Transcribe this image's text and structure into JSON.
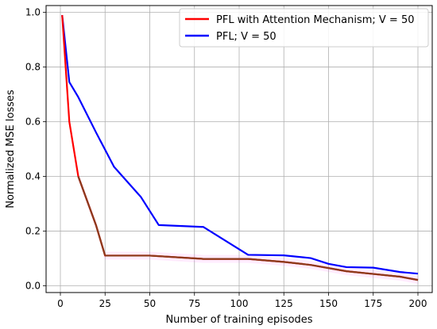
{
  "chart_data": {
    "type": "line",
    "title": "",
    "xlabel": "Number of training episodes",
    "ylabel": "Normalized MSE losses",
    "xlim": [
      -8,
      208
    ],
    "ylim": [
      -0.025,
      1.025
    ],
    "xticks": [
      0,
      25,
      50,
      75,
      100,
      125,
      150,
      175,
      200
    ],
    "yticks": [
      0.0,
      0.2,
      0.4,
      0.6,
      0.8,
      1.0
    ],
    "xtick_labels": [
      "0",
      "25",
      "50",
      "75",
      "100",
      "125",
      "150",
      "175",
      "200"
    ],
    "ytick_labels": [
      "0.0",
      "0.2",
      "0.4",
      "0.6",
      "0.8",
      "1.0"
    ],
    "grid": true,
    "legend_position": "top-right",
    "series": [
      {
        "name": "PFL with Attention Mechanism; V = 50",
        "color": "#ff0000",
        "x": [
          1,
          5,
          10,
          20,
          25,
          30,
          50,
          80,
          105,
          125,
          140,
          160,
          175,
          190,
          200
        ],
        "y": [
          0.99,
          0.6,
          0.4,
          0.22,
          0.11,
          0.11,
          0.11,
          0.098,
          0.098,
          0.087,
          0.076,
          0.053,
          0.043,
          0.033,
          0.021
        ]
      },
      {
        "name": "PFL; V = 50",
        "color": "#0000ff",
        "x": [
          1,
          5,
          10,
          20,
          30,
          45,
          55,
          80,
          105,
          125,
          140,
          150,
          160,
          175,
          190,
          200
        ],
        "y": [
          0.99,
          0.745,
          0.69,
          0.56,
          0.435,
          0.325,
          0.222,
          0.215,
          0.113,
          0.111,
          0.101,
          0.08,
          0.068,
          0.066,
          0.05,
          0.044
        ]
      }
    ]
  }
}
